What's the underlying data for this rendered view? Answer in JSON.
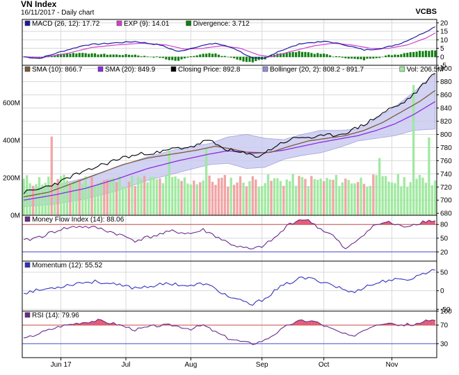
{
  "header": {
    "title": "VN Index",
    "subtitle": "16/11/2017 - Daily chart",
    "broker": "VCBS"
  },
  "colors": {
    "plot_bg": "#ffffff",
    "grid": "#d8d8d8",
    "macd": "#1a1aa0",
    "signal": "#d040d0",
    "divergence": "#108010",
    "sma10": "#7a5a3c",
    "sma20": "#8a2be2",
    "close": "#000000",
    "bollinger_fill": "#c8c8f0",
    "bollinger_edge": "#8e8ed8",
    "vol_up": "#9ce89c",
    "vol_down": "#f0a0a0",
    "mfi": "#6a2a8a",
    "momentum": "#3030c0",
    "rsi": "#6a2a8a",
    "overbought_fill": "#e04060",
    "ref_line_upper": "#d05050",
    "ref_line_lower": "#5050d0"
  },
  "x_axis": {
    "months": [
      {
        "label": "Jun 17",
        "day": 12
      },
      {
        "label": "Jul",
        "day": 33
      },
      {
        "label": "Aug",
        "day": 54
      },
      {
        "label": "Sep",
        "day": 77
      },
      {
        "label": "Oct",
        "day": 97
      },
      {
        "label": "Nov",
        "day": 119
      }
    ],
    "days": 134
  },
  "chart_data": [
    {
      "type": "line",
      "panel": "macd",
      "legend": [
        {
          "label": "MACD (26, 12): 17.72",
          "color": "#1a1aa0"
        },
        {
          "label": "EXP (9): 14.01",
          "color": "#d040d0"
        },
        {
          "label": "Divergence: 3.712",
          "color": "#108010"
        }
      ],
      "ylim": [
        -5,
        22
      ],
      "yticks": [
        -5,
        0,
        5,
        10,
        15,
        20
      ],
      "macd_knots": [
        [
          0,
          0
        ],
        [
          5,
          -1
        ],
        [
          12,
          3
        ],
        [
          20,
          7
        ],
        [
          28,
          8
        ],
        [
          36,
          9
        ],
        [
          44,
          7
        ],
        [
          50,
          3
        ],
        [
          56,
          6
        ],
        [
          62,
          8
        ],
        [
          68,
          5
        ],
        [
          74,
          -1
        ],
        [
          78,
          -1
        ],
        [
          82,
          3
        ],
        [
          90,
          8
        ],
        [
          98,
          9
        ],
        [
          104,
          7
        ],
        [
          110,
          4
        ],
        [
          116,
          5
        ],
        [
          122,
          8
        ],
        [
          128,
          13
        ],
        [
          133,
          17.72
        ]
      ],
      "signal_knots": [
        [
          0,
          0
        ],
        [
          6,
          -0.5
        ],
        [
          14,
          2
        ],
        [
          22,
          5.5
        ],
        [
          30,
          7
        ],
        [
          38,
          8
        ],
        [
          46,
          7
        ],
        [
          52,
          4.5
        ],
        [
          58,
          5
        ],
        [
          64,
          6.5
        ],
        [
          70,
          5
        ],
        [
          76,
          1
        ],
        [
          80,
          0
        ],
        [
          86,
          3
        ],
        [
          94,
          6.5
        ],
        [
          100,
          8
        ],
        [
          106,
          7
        ],
        [
          112,
          5
        ],
        [
          118,
          5
        ],
        [
          124,
          7
        ],
        [
          130,
          11
        ],
        [
          133,
          14.01
        ]
      ]
    },
    {
      "type": "line",
      "panel": "price",
      "legend": [
        {
          "label": "SMA (10): 866.7",
          "color": "#7a5a3c"
        },
        {
          "label": "SMA (20): 849.9",
          "color": "#8a2be2"
        },
        {
          "label": "Closing Price: 892.8",
          "color": "#000000"
        },
        {
          "label": "Bollinger (20, 2): 808.2 - 891.7",
          "color": "#8e8ed8"
        },
        {
          "label": "Vol: 206.5M",
          "color": "#9ce89c"
        }
      ],
      "ylim": [
        677,
        905
      ],
      "yticks": [
        680,
        700,
        720,
        740,
        760,
        780,
        800,
        820,
        840,
        860,
        880,
        900
      ],
      "close_knots": [
        [
          0,
          712
        ],
        [
          4,
          715
        ],
        [
          8,
          722
        ],
        [
          12,
          728
        ],
        [
          16,
          738
        ],
        [
          20,
          743
        ],
        [
          24,
          752
        ],
        [
          28,
          758
        ],
        [
          32,
          765
        ],
        [
          36,
          768
        ],
        [
          40,
          772
        ],
        [
          44,
          772
        ],
        [
          48,
          778
        ],
        [
          52,
          780
        ],
        [
          56,
          783
        ],
        [
          58,
          790
        ],
        [
          61,
          788
        ],
        [
          64,
          780
        ],
        [
          68,
          774
        ],
        [
          72,
          770
        ],
        [
          75,
          766
        ],
        [
          78,
          772
        ],
        [
          82,
          784
        ],
        [
          86,
          792
        ],
        [
          90,
          796
        ],
        [
          94,
          795
        ],
        [
          98,
          798
        ],
        [
          102,
          800
        ],
        [
          106,
          806
        ],
        [
          110,
          815
        ],
        [
          114,
          826
        ],
        [
          118,
          838
        ],
        [
          122,
          846
        ],
        [
          126,
          860
        ],
        [
          129,
          875
        ],
        [
          131,
          885
        ],
        [
          133,
          892.8
        ]
      ],
      "sma10_knots": [
        [
          0,
          705
        ],
        [
          8,
          712
        ],
        [
          16,
          726
        ],
        [
          24,
          740
        ],
        [
          32,
          754
        ],
        [
          40,
          764
        ],
        [
          48,
          770
        ],
        [
          56,
          776
        ],
        [
          62,
          782
        ],
        [
          68,
          777
        ],
        [
          74,
          771
        ],
        [
          80,
          773
        ],
        [
          86,
          782
        ],
        [
          92,
          790
        ],
        [
          98,
          794
        ],
        [
          104,
          798
        ],
        [
          110,
          806
        ],
        [
          116,
          818
        ],
        [
          122,
          834
        ],
        [
          128,
          850
        ],
        [
          133,
          866.7
        ]
      ],
      "sma20_knots": [
        [
          0,
          700
        ],
        [
          10,
          708
        ],
        [
          20,
          718
        ],
        [
          30,
          732
        ],
        [
          40,
          748
        ],
        [
          50,
          760
        ],
        [
          60,
          770
        ],
        [
          66,
          775
        ],
        [
          72,
          773
        ],
        [
          78,
          772
        ],
        [
          84,
          776
        ],
        [
          90,
          782
        ],
        [
          96,
          788
        ],
        [
          102,
          793
        ],
        [
          108,
          798
        ],
        [
          114,
          806
        ],
        [
          120,
          816
        ],
        [
          126,
          830
        ],
        [
          133,
          849.9
        ]
      ],
      "boll_upper_knots": [
        [
          0,
          715
        ],
        [
          10,
          722
        ],
        [
          20,
          734
        ],
        [
          30,
          750
        ],
        [
          40,
          766
        ],
        [
          50,
          778
        ],
        [
          60,
          786
        ],
        [
          66,
          796
        ],
        [
          72,
          800
        ],
        [
          78,
          794
        ],
        [
          84,
          792
        ],
        [
          90,
          800
        ],
        [
          96,
          806
        ],
        [
          102,
          806
        ],
        [
          108,
          808
        ],
        [
          114,
          824
        ],
        [
          120,
          842
        ],
        [
          126,
          864
        ],
        [
          133,
          891.7
        ]
      ],
      "boll_lower_knots": [
        [
          0,
          690
        ],
        [
          10,
          694
        ],
        [
          20,
          702
        ],
        [
          30,
          714
        ],
        [
          40,
          730
        ],
        [
          50,
          742
        ],
        [
          60,
          754
        ],
        [
          66,
          756
        ],
        [
          72,
          748
        ],
        [
          78,
          750
        ],
        [
          84,
          762
        ],
        [
          90,
          768
        ],
        [
          96,
          772
        ],
        [
          102,
          780
        ],
        [
          108,
          790
        ],
        [
          114,
          794
        ],
        [
          120,
          798
        ],
        [
          126,
          806
        ],
        [
          133,
          808.2
        ]
      ],
      "volume": {
        "ylim": [
          0,
          800
        ],
        "yticks": [
          0,
          200,
          400,
          600
        ],
        "tick_labels": [
          "0M",
          "200M",
          "400M",
          "600M"
        ],
        "base_level": 185,
        "spikes": [
          [
            9,
            235
          ],
          [
            47,
            160
          ],
          [
            59,
            170
          ],
          [
            115,
            120
          ],
          [
            126,
            510
          ],
          [
            131,
            230
          ]
        ]
      }
    },
    {
      "type": "line",
      "panel": "mfi",
      "legend": [
        {
          "label": "Money Flow Index (14): 88.06",
          "color": "#6a2a8a"
        }
      ],
      "ylim": [
        0,
        100
      ],
      "yticks": [
        20,
        50,
        80
      ],
      "ref_upper": 80,
      "ref_lower": 20,
      "knots": [
        [
          0,
          44
        ],
        [
          6,
          55
        ],
        [
          12,
          70
        ],
        [
          18,
          76
        ],
        [
          24,
          72
        ],
        [
          30,
          60
        ],
        [
          36,
          45
        ],
        [
          42,
          55
        ],
        [
          48,
          65
        ],
        [
          54,
          60
        ],
        [
          58,
          68
        ],
        [
          62,
          55
        ],
        [
          66,
          40
        ],
        [
          70,
          30
        ],
        [
          74,
          25
        ],
        [
          78,
          35
        ],
        [
          82,
          55
        ],
        [
          86,
          82
        ],
        [
          90,
          92
        ],
        [
          93,
          85
        ],
        [
          96,
          70
        ],
        [
          100,
          55
        ],
        [
          102,
          40
        ],
        [
          104,
          25
        ],
        [
          106,
          35
        ],
        [
          110,
          60
        ],
        [
          114,
          80
        ],
        [
          118,
          85
        ],
        [
          122,
          75
        ],
        [
          126,
          80
        ],
        [
          130,
          88
        ],
        [
          133,
          88.06
        ]
      ]
    },
    {
      "type": "line",
      "panel": "momentum",
      "legend": [
        {
          "label": "Momentum (12): 55.52",
          "color": "#3030c0"
        }
      ],
      "ylim": [
        -55,
        80
      ],
      "yticks": [
        -50,
        0,
        50
      ],
      "knots": [
        [
          0,
          -5
        ],
        [
          6,
          3
        ],
        [
          12,
          12
        ],
        [
          18,
          22
        ],
        [
          24,
          25
        ],
        [
          30,
          15
        ],
        [
          36,
          8
        ],
        [
          42,
          14
        ],
        [
          48,
          20
        ],
        [
          54,
          12
        ],
        [
          58,
          20
        ],
        [
          62,
          5
        ],
        [
          66,
          -15
        ],
        [
          70,
          -28
        ],
        [
          74,
          -38
        ],
        [
          78,
          -20
        ],
        [
          82,
          5
        ],
        [
          86,
          22
        ],
        [
          90,
          35
        ],
        [
          94,
          30
        ],
        [
          98,
          22
        ],
        [
          102,
          8
        ],
        [
          106,
          -5
        ],
        [
          110,
          10
        ],
        [
          114,
          20
        ],
        [
          118,
          30
        ],
        [
          122,
          28
        ],
        [
          126,
          35
        ],
        [
          130,
          50
        ],
        [
          133,
          55.52
        ]
      ]
    },
    {
      "type": "line",
      "panel": "rsi",
      "legend": [
        {
          "label": "RSI (14): 79.96",
          "color": "#6a2a8a"
        }
      ],
      "ylim": [
        0,
        100
      ],
      "yticks": [
        30,
        70,
        100
      ],
      "ref_upper": 70,
      "ref_lower": 30,
      "knots": [
        [
          0,
          40
        ],
        [
          6,
          55
        ],
        [
          12,
          68
        ],
        [
          18,
          75
        ],
        [
          24,
          80
        ],
        [
          30,
          72
        ],
        [
          36,
          60
        ],
        [
          42,
          68
        ],
        [
          48,
          70
        ],
        [
          54,
          62
        ],
        [
          58,
          70
        ],
        [
          62,
          55
        ],
        [
          66,
          42
        ],
        [
          70,
          35
        ],
        [
          74,
          30
        ],
        [
          78,
          38
        ],
        [
          82,
          55
        ],
        [
          86,
          72
        ],
        [
          90,
          80
        ],
        [
          94,
          78
        ],
        [
          98,
          66
        ],
        [
          102,
          55
        ],
        [
          106,
          45
        ],
        [
          110,
          60
        ],
        [
          114,
          72
        ],
        [
          118,
          76
        ],
        [
          122,
          70
        ],
        [
          126,
          72
        ],
        [
          130,
          78
        ],
        [
          133,
          79.96
        ]
      ]
    }
  ]
}
